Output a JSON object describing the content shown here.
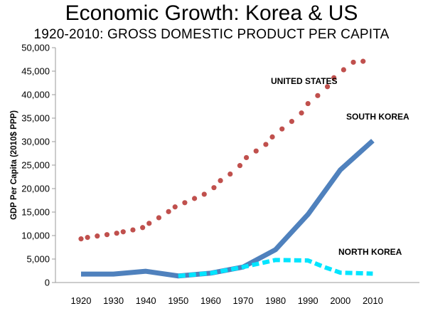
{
  "chart_data": {
    "type": "line",
    "title": "Economic Growth: Korea & US",
    "subtitle": "1920-2010: GROSS DOMESTIC PRODUCT PER CAPITA",
    "xlabel": "",
    "ylabel": "GDP Per Capita (2010$ PPP)",
    "xlim": [
      1915,
      2015
    ],
    "ylim": [
      0,
      50000
    ],
    "x_ticks": [
      "1920",
      "1930",
      "1940",
      "1950",
      "1960",
      "1970",
      "1980",
      "1990",
      "2000",
      "2010"
    ],
    "x_tick_values": [
      1920,
      1930,
      1940,
      1950,
      1960,
      1970,
      1980,
      1990,
      2000,
      2010
    ],
    "y_ticks": [
      "0",
      "5,000",
      "10,000",
      "15,000",
      "20,000",
      "25,000",
      "30,000",
      "35,000",
      "40,000",
      "45,000",
      "50,000"
    ],
    "y_tick_values": [
      0,
      5000,
      10000,
      15000,
      20000,
      25000,
      30000,
      35000,
      40000,
      45000,
      50000
    ],
    "grid": false,
    "series": [
      {
        "name": "UNITED STATES",
        "style": "dotted",
        "color": "#c0504d",
        "x": [
          1920,
          1922,
          1925,
          1928,
          1931,
          1933,
          1936,
          1939,
          1941,
          1944,
          1947,
          1949,
          1952,
          1955,
          1958,
          1961,
          1963,
          1966,
          1969,
          1971,
          1974,
          1977,
          1979,
          1982,
          1985,
          1988,
          1990,
          1993,
          1996,
          1998,
          2001,
          2004,
          2007
        ],
        "y": [
          9300,
          9600,
          9900,
          10200,
          10500,
          10800,
          11200,
          11700,
          12600,
          13800,
          15100,
          16100,
          17000,
          17900,
          18800,
          20200,
          21700,
          23100,
          24900,
          26600,
          28000,
          29400,
          31000,
          32700,
          34300,
          36100,
          38100,
          39800,
          41700,
          43600,
          45300,
          46900,
          47100
        ]
      },
      {
        "name": "SOUTH KOREA",
        "style": "solid",
        "color": "#4f81bd",
        "x": [
          1920,
          1930,
          1940,
          1950,
          1960,
          1970,
          1980,
          1990,
          2000,
          2010
        ],
        "y": [
          1800,
          1800,
          2400,
          1400,
          2000,
          3300,
          7000,
          14500,
          24000,
          30200
        ]
      },
      {
        "name": "NORTH KOREA",
        "style": "dashed",
        "color": "#00e5ff",
        "x": [
          1950,
          1960,
          1970,
          1976,
          1980,
          1990,
          1995,
          2000,
          2010
        ],
        "y": [
          1400,
          2000,
          3300,
          4200,
          4800,
          4700,
          3300,
          2100,
          1900
        ]
      }
    ],
    "annotations": [
      "UNITED STATES",
      "SOUTH KOREA",
      "NORTH KOREA"
    ]
  }
}
